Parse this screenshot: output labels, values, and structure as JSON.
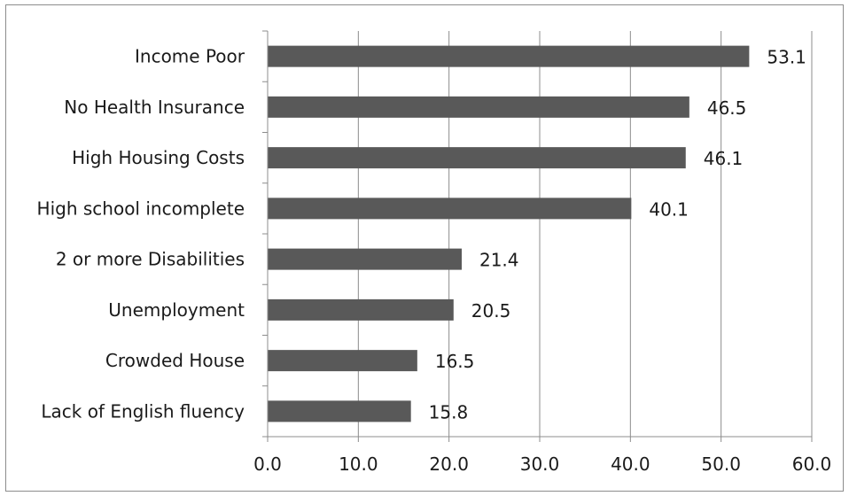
{
  "chart_data": {
    "type": "bar",
    "orientation": "horizontal",
    "categories": [
      "Income Poor",
      "No Health Insurance",
      "High Housing Costs",
      "High school incomplete",
      "2 or more Disabilities",
      "Unemployment",
      "Crowded House",
      "Lack of English fluency"
    ],
    "values": [
      53.1,
      46.5,
      46.1,
      40.1,
      21.4,
      20.5,
      16.5,
      15.8
    ],
    "value_labels": [
      "53.1",
      "46.5",
      "46.1",
      "40.1",
      "21.4",
      "20.5",
      "16.5",
      "15.8"
    ],
    "xlim": [
      0,
      60
    ],
    "x_ticks": [
      0,
      10,
      20,
      30,
      40,
      50,
      60
    ],
    "x_tick_labels": [
      "0.0",
      "10.0",
      "20.0",
      "30.0",
      "40.0",
      "50.0",
      "60.0"
    ],
    "title": "",
    "xlabel": "",
    "ylabel": "",
    "grid": "vertical",
    "legend": "none",
    "bar_color": "#595959",
    "grid_color": "#8c8c8c",
    "axis_color": "#8c8c8c",
    "text_color": "#1a1a1a"
  }
}
